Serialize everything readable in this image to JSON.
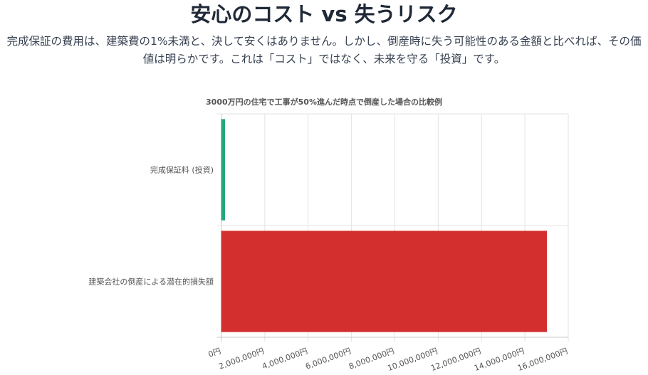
{
  "page": {
    "title": "安心のコスト vs 失うリスク",
    "description": "完成保証の費用は、建築費の1%未満と、決して安くはありません。しかし、倒産時に失う可能性のある金額と比べれば、その価値は明らかです。これは「コスト」ではなく、未来を守る「投資」です。"
  },
  "chart_data": {
    "type": "bar",
    "orientation": "horizontal",
    "title": "3000万円の住宅で工事が50%進んだ時点で倒産した場合の比較例",
    "categories": [
      "完成保証料 (投資)",
      "建築会社の倒産による潜在的損失額"
    ],
    "values": [
      150000,
      15000000
    ],
    "colors": [
      "#22a877",
      "#d32f2f"
    ],
    "xlim": [
      0,
      16000000
    ],
    "xticks": [
      0,
      2000000,
      4000000,
      6000000,
      8000000,
      10000000,
      12000000,
      14000000,
      16000000
    ],
    "tick_suffix": "円",
    "xlabel": "",
    "ylabel": "",
    "grid": true,
    "legend": "none"
  }
}
